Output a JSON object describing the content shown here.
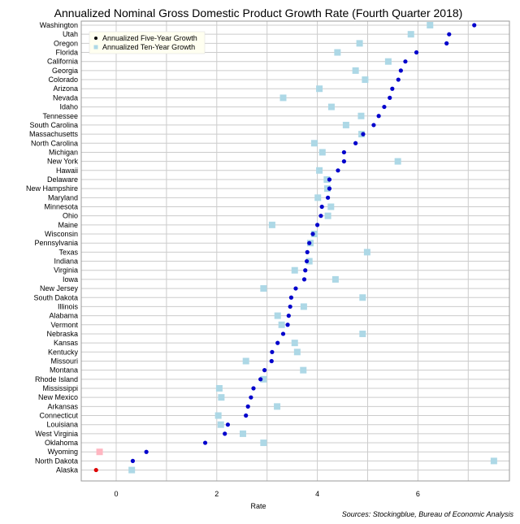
{
  "chart_data": {
    "type": "scatter",
    "title": "Annualized Nominal Gross Domestic Product Growth Rate (Fourth Quarter 2018)",
    "xlabel": "Rate",
    "ylabel": "",
    "xlim": [
      -0.75,
      7.8
    ],
    "x_ticks": [
      0,
      2,
      4,
      6
    ],
    "grid": true,
    "legend_position": "top-left",
    "source": "Sources: Stockingblue, Bureau of Economic Analysis",
    "colors": {
      "five_year": "#0000cc",
      "ten_year": "#add8e6",
      "five_year_negative": "#dd0000",
      "ten_year_negative": "#ffb6c1",
      "grid": "#cccccc"
    },
    "categories": [
      "Washington",
      "Utah",
      "Oregon",
      "Florida",
      "California",
      "Georgia",
      "Colorado",
      "Arizona",
      "Nevada",
      "Idaho",
      "Tennessee",
      "South Carolina",
      "Massachusetts",
      "North Carolina",
      "Michigan",
      "New York",
      "Hawaii",
      "Delaware",
      "New Hampshire",
      "Maryland",
      "Minnesota",
      "Ohio",
      "Maine",
      "Wisconsin",
      "Pennsylvania",
      "Texas",
      "Indiana",
      "Virginia",
      "Iowa",
      "New Jersey",
      "South Dakota",
      "Illinois",
      "Alabama",
      "Vermont",
      "Nebraska",
      "Kansas",
      "Kentucky",
      "Missouri",
      "Montana",
      "Rhode Island",
      "Mississippi",
      "New Mexico",
      "Arkansas",
      "Connecticut",
      "Louisiana",
      "West Virginia",
      "Oklahoma",
      "Wyoming",
      "North Dakota",
      "Alaska"
    ],
    "series": [
      {
        "name": "Annualized Five-Year Growth",
        "values": [
          7.12,
          6.62,
          6.57,
          5.97,
          5.75,
          5.66,
          5.61,
          5.49,
          5.44,
          5.33,
          5.22,
          5.12,
          4.91,
          4.76,
          4.53,
          4.53,
          4.41,
          4.24,
          4.24,
          4.21,
          4.09,
          4.07,
          4.0,
          3.91,
          3.84,
          3.8,
          3.79,
          3.76,
          3.74,
          3.57,
          3.48,
          3.46,
          3.43,
          3.41,
          3.32,
          3.21,
          3.1,
          3.09,
          2.95,
          2.87,
          2.73,
          2.68,
          2.62,
          2.58,
          2.22,
          2.16,
          1.77,
          0.6,
          0.33,
          -0.4
        ]
      },
      {
        "name": "Annualized Ten-Year Growth",
        "values": [
          6.24,
          5.86,
          4.84,
          4.4,
          5.41,
          4.76,
          4.95,
          4.04,
          3.32,
          4.28,
          4.87,
          4.57,
          4.88,
          3.94,
          4.1,
          5.6,
          4.04,
          4.19,
          4.2,
          4.01,
          4.27,
          4.21,
          3.1,
          3.94,
          3.86,
          4.99,
          3.84,
          3.55,
          4.36,
          2.93,
          4.9,
          3.73,
          3.21,
          3.29,
          4.9,
          3.55,
          3.6,
          2.58,
          3.72,
          2.93,
          2.05,
          2.09,
          3.2,
          2.03,
          2.08,
          2.52,
          2.93,
          -0.33,
          7.51,
          0.31
        ]
      }
    ]
  }
}
